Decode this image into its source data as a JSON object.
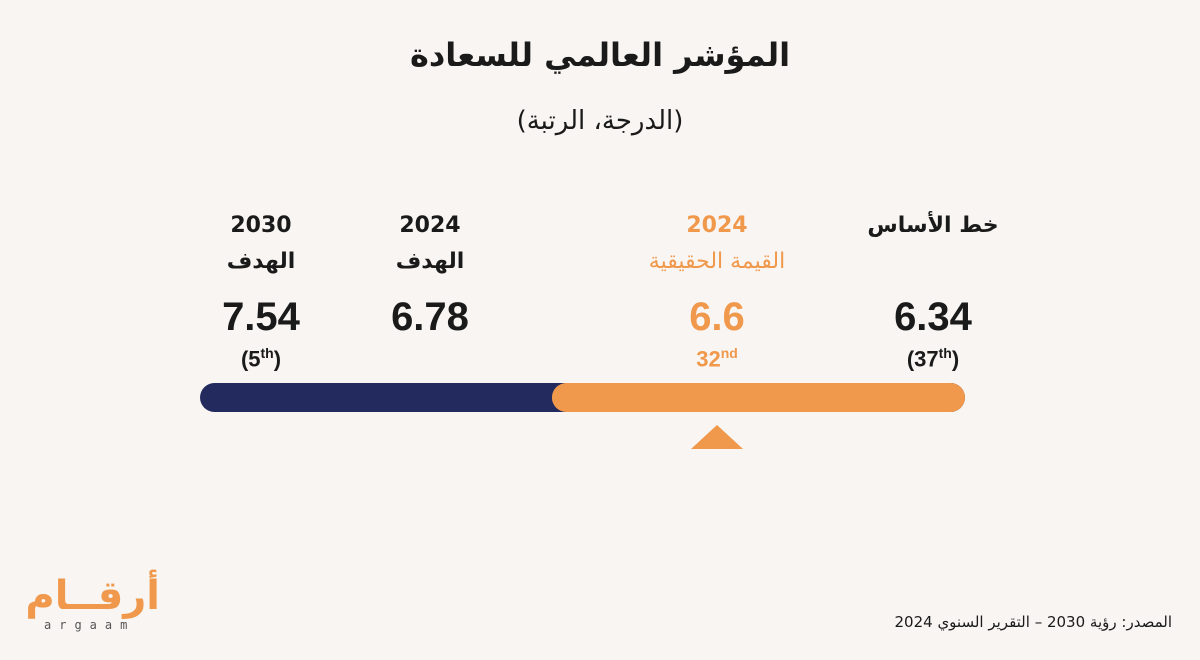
{
  "title": "المؤشر العالمي للسعادة",
  "subtitle": "(الدرجة، الرتبة)",
  "chart_data": {
    "type": "bar",
    "title": "المؤشر العالمي للسعادة",
    "subtitle": "(الدرجة، الرتبة)",
    "points": [
      {
        "line1": "خط الأساس",
        "line2": "",
        "value": 6.34,
        "value_label": "6.34",
        "rank": "(37",
        "rank_suffix": "th",
        "rank_close": ")"
      },
      {
        "line1": "2024",
        "line2": "القيمة الحقيقية",
        "value": 6.6,
        "value_label": "6.6",
        "rank": "32",
        "rank_suffix": "nd",
        "rank_close": ""
      },
      {
        "line1": "2024",
        "line2": "الهدف",
        "value": 6.78,
        "value_label": "6.78",
        "rank": "",
        "rank_suffix": "",
        "rank_close": ""
      },
      {
        "line1": "2030",
        "line2": "الهدف",
        "value": 7.54,
        "value_label": "7.54",
        "rank": "(5",
        "rank_suffix": "th",
        "rank_close": ")"
      }
    ],
    "scale_direction": "right-to-left",
    "progress_fraction": 0.54,
    "colors": {
      "achieved": "#f0984b",
      "remaining": "#232b5e",
      "marker": "#f0984b"
    }
  },
  "logo": {
    "arabic": "أرقــام",
    "latin": "argaam"
  },
  "source": "المصدر: رؤية 2030 – التقرير السنوي 2024"
}
